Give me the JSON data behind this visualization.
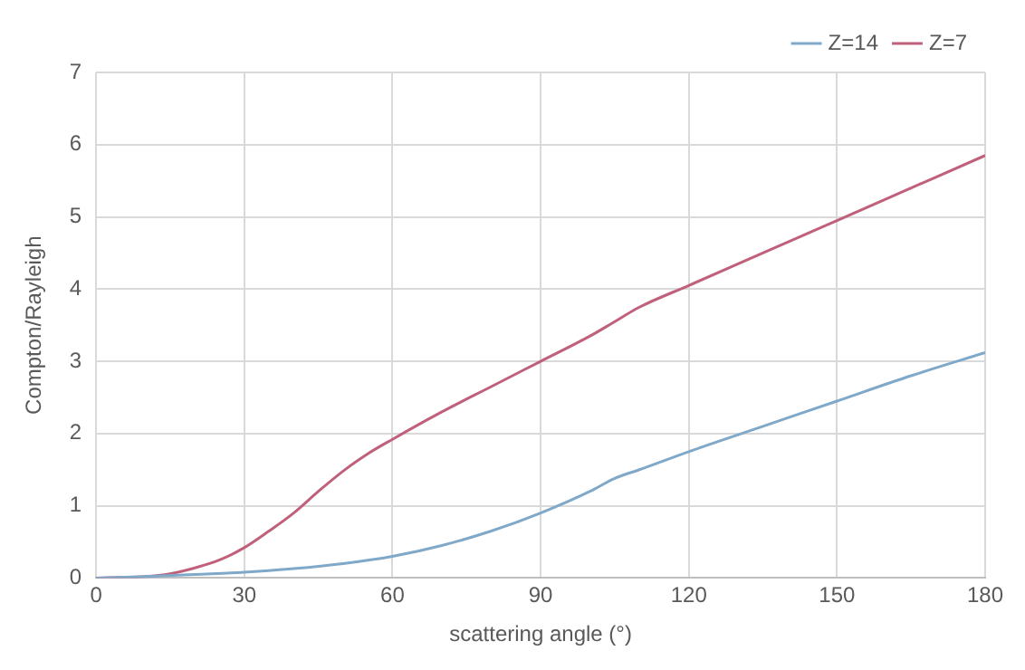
{
  "chart_data": {
    "type": "line",
    "xlabel": "scattering angle (°)",
    "ylabel": "Compton/Rayleigh",
    "xlim": [
      0,
      180
    ],
    "xticks": [
      0,
      30,
      60,
      90,
      120,
      150,
      180
    ],
    "ylim": [
      0,
      7
    ],
    "yticks": [
      0,
      1,
      2,
      3,
      4,
      5,
      6,
      7
    ],
    "grid": true,
    "legend": "top right",
    "marker": "none",
    "line_style": "solid",
    "series": [
      {
        "name": "Z=14",
        "color": "#7fa8c9",
        "x": [
          0,
          10,
          20,
          30,
          40,
          50,
          60,
          70,
          80,
          90,
          100,
          105,
          110,
          120,
          135,
          150,
          165,
          180
        ],
        "values": [
          0,
          0.02,
          0.05,
          0.08,
          0.13,
          0.2,
          0.3,
          0.45,
          0.65,
          0.9,
          1.2,
          1.38,
          1.5,
          1.75,
          2.1,
          2.45,
          2.8,
          3.12
        ]
      },
      {
        "name": "Z=7",
        "color": "#c0607a",
        "x": [
          0,
          10,
          15,
          20,
          25,
          30,
          35,
          40,
          45,
          50,
          55,
          60,
          70,
          80,
          90,
          100,
          105,
          110,
          120,
          135,
          150,
          165,
          180
        ],
        "values": [
          0,
          0.02,
          0.06,
          0.14,
          0.25,
          0.42,
          0.65,
          0.9,
          1.2,
          1.48,
          1.72,
          1.92,
          2.3,
          2.65,
          3.0,
          3.35,
          3.55,
          3.75,
          4.05,
          4.5,
          4.95,
          5.4,
          5.85
        ]
      }
    ]
  }
}
